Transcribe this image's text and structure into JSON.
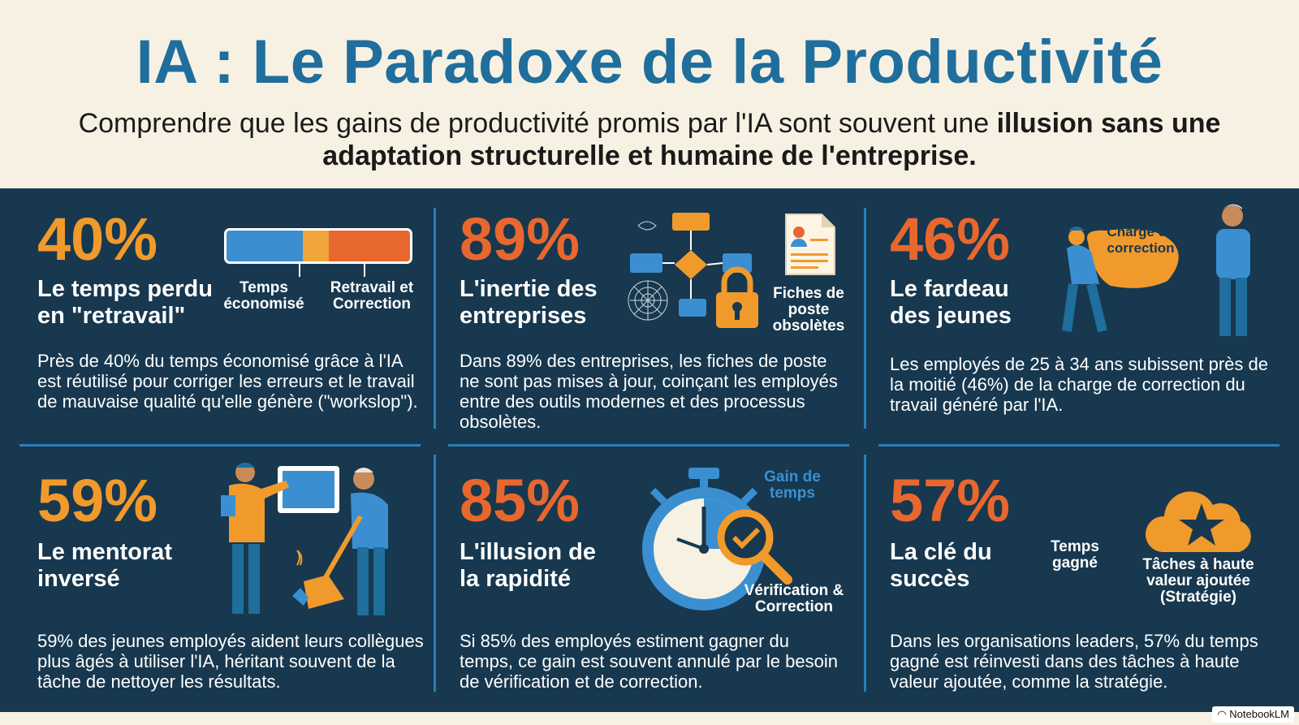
{
  "header": {
    "title": "IA : Le Paradoxe de la Productivité",
    "subtitle_part1": "Comprendre que les gains de productivité promis par l'IA sont souvent une ",
    "subtitle_bold": "illusion sans une adaptation structurelle et humaine de l'entreprise."
  },
  "colors": {
    "title_blue": "#1f6e9c",
    "panel_bg": "#17384f",
    "accent_orange": "#f19a2c",
    "accent_red": "#e8672e",
    "accent_blue": "#3b8fd0"
  },
  "cards": [
    {
      "stat": "40%",
      "label": "Le temps perdu en \"retravail\"",
      "bar": {
        "saved_label": "Temps économisé",
        "rework_label": "Retravail et Correction",
        "rework_fraction": 0.4
      },
      "desc": "Près de 40% du temps économisé grâce à l'IA est réutilisé pour corriger les erreurs et le travail de mauvaise qualité qu'elle génère (\"workslop\")."
    },
    {
      "stat": "89%",
      "label": "L'inertie des entreprises",
      "icon_caption": "Fiches de poste obsolètes",
      "icons": [
        "flowchart-cobweb-icon",
        "lock-icon",
        "document-icon"
      ],
      "desc": "Dans 89% des entreprises, les fiches de poste ne sont pas mises à jour, coinçant les employés entre des outils modernes et des processus obsolètes."
    },
    {
      "stat": "46%",
      "label": "Le fardeau des jeunes",
      "icon_caption": "Charge de correction",
      "icons": [
        "young-worker-carrying-icon",
        "older-worker-icon"
      ],
      "desc": "Les employés de 25 à 34 ans subissent près de la moitié (46%) de la charge de correction du travail généré par l'IA."
    },
    {
      "stat": "59%",
      "label": "Le mentorat inversé",
      "icons": [
        "mentor-screen-icon",
        "sweeping-person-icon"
      ],
      "desc": "59% des jeunes employés aident leurs collègues plus âgés à utiliser l'IA, héritant souvent de la tâche de nettoyer les résultats."
    },
    {
      "stat": "85%",
      "label": "L'illusion de la rapidité",
      "caption_top": "Gain de temps",
      "caption_bottom": "Vérification & Correction",
      "icons": [
        "stopwatch-icon",
        "magnifier-check-icon"
      ],
      "desc": "Si 85% des employés estiment gagner du temps, ce gain est souvent annulé par le besoin de vérification et de correction."
    },
    {
      "stat": "57%",
      "label": "La clé du succès",
      "caption_left": "Temps gagné",
      "caption_right": "Tâches à haute valeur ajoutée (Stratégie)",
      "icons": [
        "cloud-star-icon"
      ],
      "desc": "Dans les organisations leaders, 57% du temps gagné est réinvesti dans des tâches à haute valeur ajoutée, comme la stratégie."
    }
  ],
  "footer": {
    "badge": "NotebookLM"
  }
}
